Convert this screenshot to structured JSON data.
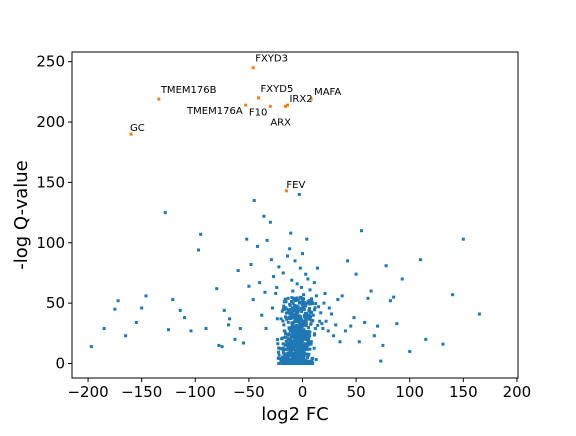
{
  "chart_data": {
    "type": "scatter",
    "title": "",
    "xlabel": "log2 FC",
    "ylabel": "-log Q-value",
    "xlim": [
      -215,
      201
    ],
    "ylim": [
      -12,
      258
    ],
    "x_ticks": [
      -200,
      -150,
      -100,
      -50,
      0,
      50,
      100,
      150,
      200
    ],
    "y_ticks": [
      0,
      50,
      100,
      150,
      200,
      250
    ],
    "grid": false,
    "legend": "none",
    "colors": {
      "background": "#1f77b4",
      "highlight": "#ff7f0e",
      "axis": "#000000"
    },
    "highlighted": [
      {
        "label": "FXYD3",
        "x": -46,
        "y": 245
      },
      {
        "label": "TMEM176B",
        "x": -134,
        "y": 219
      },
      {
        "label": "FXYD5",
        "x": -41,
        "y": 220
      },
      {
        "label": "MAFA",
        "x": 8,
        "y": 219
      },
      {
        "label": "IRX2",
        "x": -14,
        "y": 214
      },
      {
        "label": "TMEM176A",
        "x": -53,
        "y": 214
      },
      {
        "label": "F10",
        "x": -30,
        "y": 213
      },
      {
        "label": "ARX",
        "x": -16,
        "y": 213
      },
      {
        "label": "GC",
        "x": -160,
        "y": 190
      },
      {
        "label": "FEV",
        "x": -15,
        "y": 143
      }
    ],
    "background_points": [
      [
        -197,
        14
      ],
      [
        -185,
        29
      ],
      [
        -175,
        45
      ],
      [
        -172,
        52
      ],
      [
        -165,
        23
      ],
      [
        -155,
        34
      ],
      [
        -150,
        46
      ],
      [
        -146,
        56
      ],
      [
        -128,
        125
      ],
      [
        -125,
        28
      ],
      [
        -121,
        53
      ],
      [
        -114,
        44
      ],
      [
        -110,
        38
      ],
      [
        -104,
        27
      ],
      [
        -97,
        94
      ],
      [
        -95,
        107
      ],
      [
        -90,
        29
      ],
      [
        -80,
        62
      ],
      [
        -78,
        15
      ],
      [
        -75,
        14
      ],
      [
        -73,
        44
      ],
      [
        -69,
        32
      ],
      [
        -68,
        37
      ],
      [
        -63,
        20
      ],
      [
        -60,
        77
      ],
      [
        -58,
        29
      ],
      [
        -55,
        17
      ],
      [
        -52,
        103
      ],
      [
        -50,
        64
      ],
      [
        -48,
        82
      ],
      [
        -46,
        53
      ],
      [
        -45,
        135
      ],
      [
        -42,
        97
      ],
      [
        -40,
        67
      ],
      [
        -38,
        40
      ],
      [
        -36,
        122
      ],
      [
        -35,
        59
      ],
      [
        -34,
        29
      ],
      [
        -33,
        102
      ],
      [
        -30,
        117
      ],
      [
        -29,
        86
      ],
      [
        -28,
        46
      ],
      [
        -27,
        72
      ],
      [
        -25,
        58
      ],
      [
        -24,
        63
      ],
      [
        -22,
        80
      ],
      [
        -20,
        37
      ],
      [
        -18,
        75
      ],
      [
        -17,
        27
      ],
      [
        -16,
        22
      ],
      [
        -15,
        45
      ],
      [
        -14,
        89
      ],
      [
        -13,
        12
      ],
      [
        -12,
        95
      ],
      [
        -11,
        108
      ],
      [
        -10,
        69
      ],
      [
        -9,
        60
      ],
      [
        -8,
        54
      ],
      [
        -7,
        85
      ],
      [
        -6,
        29
      ],
      [
        -5,
        66
      ],
      [
        -4,
        47
      ],
      [
        -3,
        140
      ],
      [
        -2,
        79
      ],
      [
        -1,
        63
      ],
      [
        0,
        91
      ],
      [
        1,
        57
      ],
      [
        2,
        26
      ],
      [
        3,
        74
      ],
      [
        4,
        103
      ],
      [
        5,
        70
      ],
      [
        6,
        44
      ],
      [
        7,
        61
      ],
      [
        8,
        33
      ],
      [
        9,
        51
      ],
      [
        10,
        40
      ],
      [
        11,
        67
      ],
      [
        12,
        29
      ],
      [
        13,
        56
      ],
      [
        14,
        79
      ],
      [
        15,
        47
      ],
      [
        16,
        35
      ],
      [
        17,
        42
      ],
      [
        18,
        33
      ],
      [
        19,
        29
      ],
      [
        20,
        50
      ],
      [
        21,
        58
      ],
      [
        22,
        35
      ],
      [
        24,
        27
      ],
      [
        25,
        46
      ],
      [
        27,
        41
      ],
      [
        29,
        23
      ],
      [
        31,
        32
      ],
      [
        33,
        53
      ],
      [
        35,
        18
      ],
      [
        37,
        56
      ],
      [
        40,
        27
      ],
      [
        42,
        85
      ],
      [
        45,
        31
      ],
      [
        48,
        38
      ],
      [
        50,
        74
      ],
      [
        53,
        18
      ],
      [
        55,
        110
      ],
      [
        58,
        34
      ],
      [
        61,
        54
      ],
      [
        64,
        60
      ],
      [
        67,
        23
      ],
      [
        70,
        31
      ],
      [
        73,
        2
      ],
      [
        75,
        15
      ],
      [
        78,
        81
      ],
      [
        82,
        52
      ],
      [
        85,
        55
      ],
      [
        88,
        33
      ],
      [
        93,
        70
      ],
      [
        100,
        10
      ],
      [
        110,
        86
      ],
      [
        115,
        20
      ],
      [
        131,
        16
      ],
      [
        140,
        57
      ],
      [
        150,
        103
      ],
      [
        165,
        41
      ]
    ]
  }
}
